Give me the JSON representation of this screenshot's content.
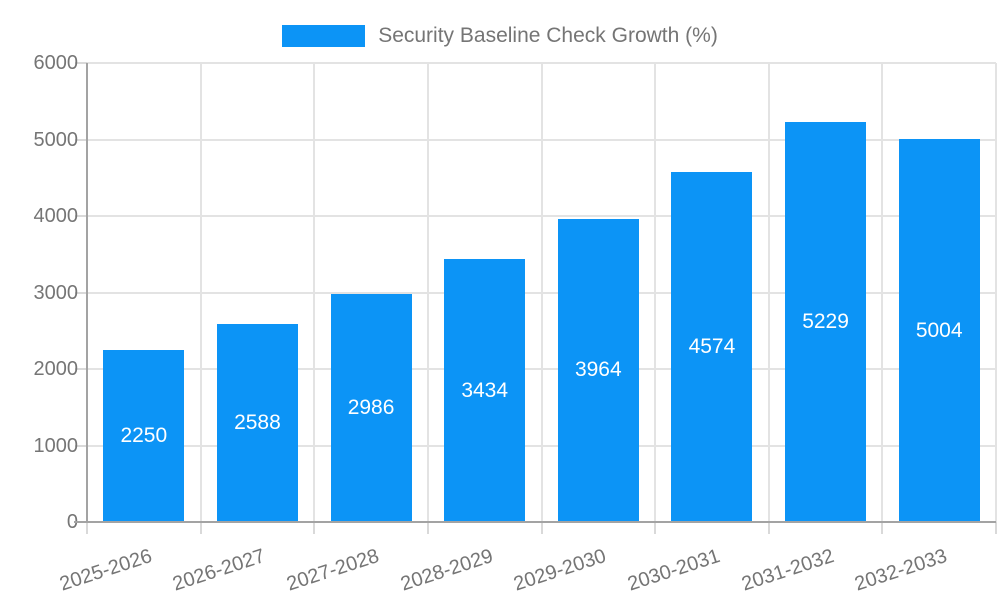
{
  "chart_data": {
    "type": "bar",
    "title": "Security Baseline Check Growth (%)",
    "categories": [
      "2025-2026",
      "2026-2027",
      "2027-2028",
      "2028-2029",
      "2029-2030",
      "2030-2031",
      "2031-2032",
      "2032-2033"
    ],
    "values": [
      2250,
      2588,
      2986,
      3434,
      3964,
      4574,
      5229,
      5004
    ],
    "y_ticks": [
      "0",
      "1000",
      "2000",
      "3000",
      "4000",
      "5000",
      "6000"
    ],
    "ylim": [
      0,
      6000
    ],
    "xlabel": "",
    "ylabel": "",
    "grid": "on",
    "legend_position": "top",
    "bar_color": "#0c94f6",
    "value_label_color": "#ffffff",
    "text_color": "#757575"
  }
}
